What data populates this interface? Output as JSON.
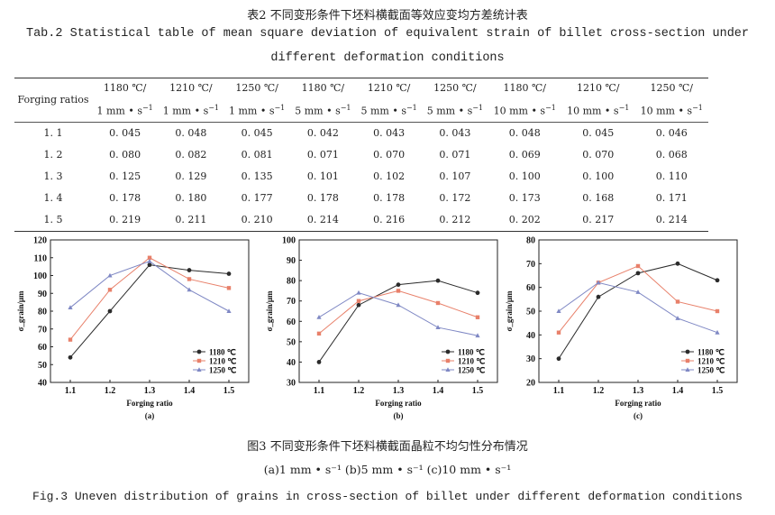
{
  "table": {
    "title_cn": "表2 不同变形条件下坯料横截面等效应变均方差统计表",
    "title_en_line1": "Tab.2 Statistical table of mean square deviation of equivalent strain of billet cross-section under",
    "title_en_line2": "different deformation conditions",
    "row_header": "Forging ratios",
    "columns": [
      {
        "temp": "1180 ℃/",
        "rate": "1 mm • s",
        "exp": "−1"
      },
      {
        "temp": "1210 ℃/",
        "rate": "1 mm • s",
        "exp": "−1"
      },
      {
        "temp": "1250 ℃/",
        "rate": "1 mm • s",
        "exp": "−1"
      },
      {
        "temp": "1180 ℃/",
        "rate": "5 mm • s",
        "exp": "−1"
      },
      {
        "temp": "1210 ℃/",
        "rate": "5 mm • s",
        "exp": "−1"
      },
      {
        "temp": "1250 ℃/",
        "rate": "5 mm • s",
        "exp": "−1"
      },
      {
        "temp": "1180 ℃/",
        "rate": "10 mm • s",
        "exp": "−1"
      },
      {
        "temp": "1210 ℃/",
        "rate": "10 mm • s",
        "exp": "−1"
      },
      {
        "temp": "1250 ℃/",
        "rate": "10 mm • s",
        "exp": "−1"
      }
    ],
    "rows": [
      [
        "1. 1",
        "0. 045",
        "0. 048",
        "0. 045",
        "0. 042",
        "0. 043",
        "0. 043",
        "0. 048",
        "0. 045",
        "0. 046"
      ],
      [
        "1. 2",
        "0. 080",
        "0. 082",
        "0. 081",
        "0. 071",
        "0. 070",
        "0. 071",
        "0. 069",
        "0. 070",
        "0. 068"
      ],
      [
        "1. 3",
        "0. 125",
        "0. 129",
        "0. 135",
        "0. 101",
        "0. 102",
        "0. 107",
        "0. 100",
        "0. 100",
        "0. 110"
      ],
      [
        "1. 4",
        "0. 178",
        "0. 180",
        "0. 177",
        "0. 178",
        "0. 178",
        "0. 172",
        "0. 173",
        "0. 168",
        "0. 171"
      ],
      [
        "1. 5",
        "0. 219",
        "0. 211",
        "0. 210",
        "0. 214",
        "0. 216",
        "0. 212",
        "0. 202",
        "0. 217",
        "0. 214"
      ]
    ]
  },
  "figure": {
    "caption_cn": "图3 不同变形条件下坯料横截面晶粒不均匀性分布情况",
    "subcaption": "(a)1 mm • s⁻¹   (b)5 mm • s⁻¹   (c)10 mm • s⁻¹",
    "caption_en": "Fig.3 Uneven distribution of grains in cross-section of billet under different deformation conditions"
  },
  "series_colors": [
    "#2b2b2b",
    "#e8806a",
    "#7f88c4"
  ],
  "chart_data": [
    {
      "type": "line",
      "panel_label": "(a)",
      "xlabel": "Forging ratio",
      "ylabel": "σ_grain/μm",
      "x": [
        1.1,
        1.2,
        1.3,
        1.4,
        1.5
      ],
      "ylim": [
        40,
        120
      ],
      "yticks": [
        40,
        50,
        60,
        70,
        80,
        90,
        100,
        110,
        120
      ],
      "legend_position": "bottom-right",
      "series": [
        {
          "name": "1180 ℃",
          "values": [
            54,
            80,
            106,
            103,
            101
          ]
        },
        {
          "name": "1210 ℃",
          "values": [
            64,
            92,
            110,
            98,
            93
          ]
        },
        {
          "name": "1250 ℃",
          "values": [
            82,
            100,
            108,
            92,
            80
          ]
        }
      ]
    },
    {
      "type": "line",
      "panel_label": "(b)",
      "xlabel": "Forging ratio",
      "ylabel": "σ_grain/μm",
      "x": [
        1.1,
        1.2,
        1.3,
        1.4,
        1.5
      ],
      "ylim": [
        30,
        100
      ],
      "yticks": [
        30,
        40,
        50,
        60,
        70,
        80,
        90,
        100
      ],
      "legend_position": "bottom-right",
      "series": [
        {
          "name": "1180 ℃",
          "values": [
            40,
            68,
            78,
            80,
            74
          ]
        },
        {
          "name": "1210 ℃",
          "values": [
            54,
            70,
            75,
            69,
            62
          ]
        },
        {
          "name": "1250 ℃",
          "values": [
            62,
            74,
            68,
            57,
            53
          ]
        }
      ]
    },
    {
      "type": "line",
      "panel_label": "(c)",
      "xlabel": "Forging ratio",
      "ylabel": "σ_grain/μm",
      "x": [
        1.1,
        1.2,
        1.3,
        1.4,
        1.5
      ],
      "ylim": [
        20,
        80
      ],
      "yticks": [
        20,
        30,
        40,
        50,
        60,
        70,
        80
      ],
      "legend_position": "bottom-right",
      "series": [
        {
          "name": "1180 ℃",
          "values": [
            30,
            56,
            66,
            70,
            63
          ]
        },
        {
          "name": "1210 ℃",
          "values": [
            41,
            62,
            69,
            54,
            50
          ]
        },
        {
          "name": "1250 ℃",
          "values": [
            50,
            62,
            58,
            47,
            41
          ]
        }
      ]
    }
  ]
}
